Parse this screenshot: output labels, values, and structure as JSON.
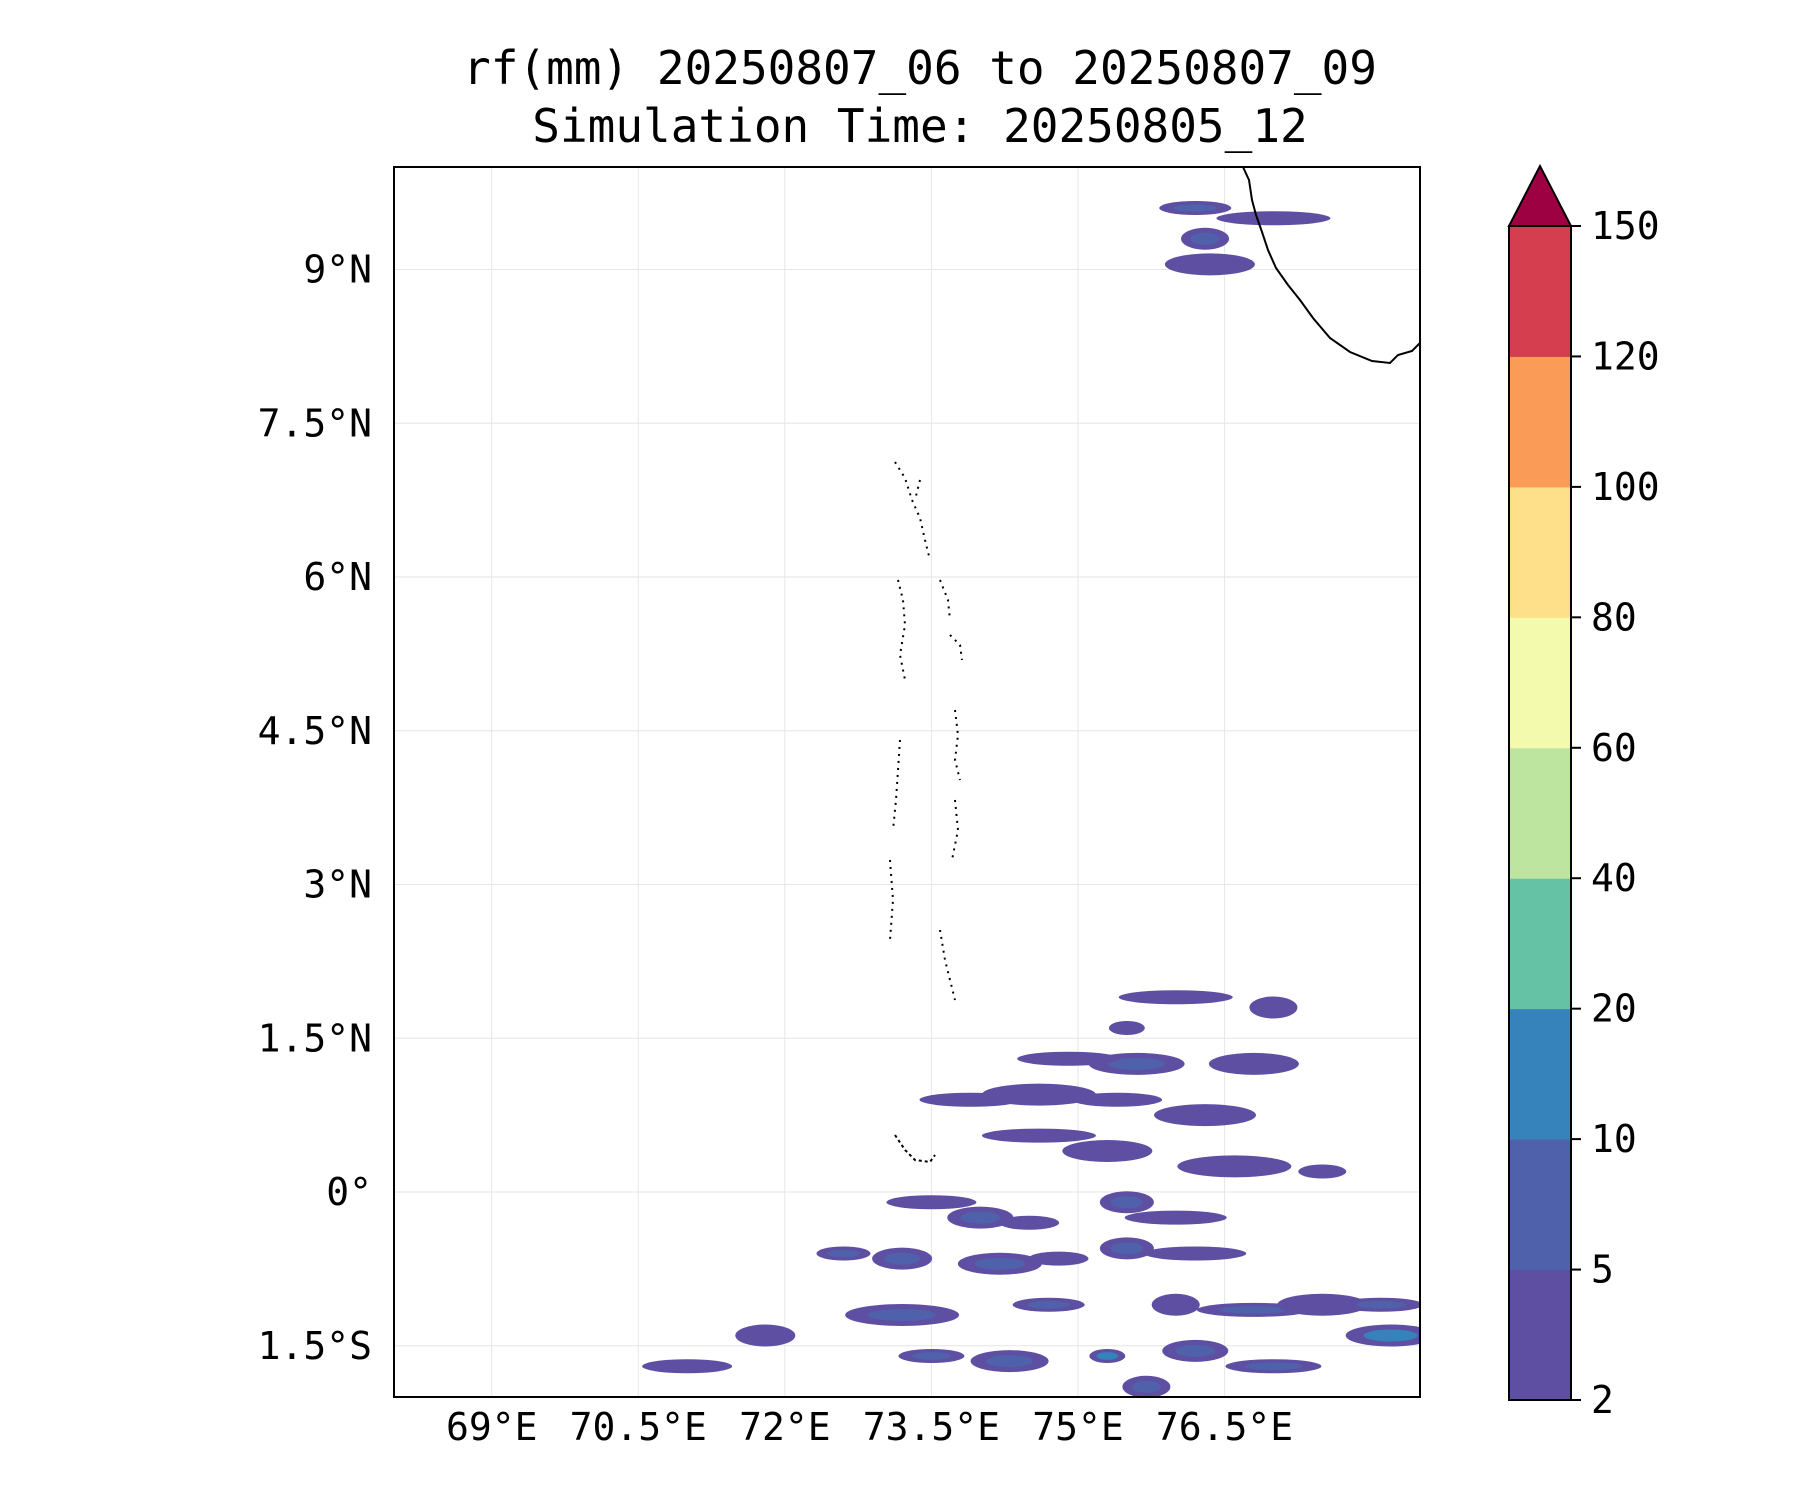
{
  "title_line1": "rf(mm) 20250807_06 to 20250807_09",
  "title_line2": "Simulation Time: 20250805_12",
  "map": {
    "type": "filled contour map",
    "variable": "rf(mm)",
    "extent": {
      "lon": [
        68.0,
        78.5
      ],
      "lat": [
        -2.0,
        10.0
      ]
    },
    "grid": true,
    "coastline_color": "#000000",
    "land_fill": "none"
  },
  "axes": {
    "lat_ticks": [
      {
        "value": 9.0,
        "label": "9°N"
      },
      {
        "value": 7.5,
        "label": "7.5°N"
      },
      {
        "value": 6.0,
        "label": "6°N"
      },
      {
        "value": 4.5,
        "label": "4.5°N"
      },
      {
        "value": 3.0,
        "label": "3°N"
      },
      {
        "value": 1.5,
        "label": "1.5°N"
      },
      {
        "value": 0.0,
        "label": "0°"
      },
      {
        "value": -1.5,
        "label": "1.5°S"
      }
    ],
    "lon_ticks": [
      {
        "value": 69.0,
        "label": "69°E"
      },
      {
        "value": 70.5,
        "label": "70.5°E"
      },
      {
        "value": 72.0,
        "label": "72°E"
      },
      {
        "value": 73.5,
        "label": "73.5°E"
      },
      {
        "value": 75.0,
        "label": "75°E"
      },
      {
        "value": 76.5,
        "label": "76.5°E"
      }
    ]
  },
  "colorbar": {
    "orientation": "vertical",
    "extend": "max",
    "extend_color": "#9e0142",
    "levels": [
      {
        "from": 2,
        "to": 5,
        "color": "#5e4fa2"
      },
      {
        "from": 5,
        "to": 10,
        "color": "#4f61aa"
      },
      {
        "from": 10,
        "to": 20,
        "color": "#3682ba"
      },
      {
        "from": 20,
        "to": 40,
        "color": "#66c2a5"
      },
      {
        "from": 40,
        "to": 60,
        "color": "#bee5a0"
      },
      {
        "from": 60,
        "to": 80,
        "color": "#f3faad"
      },
      {
        "from": 80,
        "to": 100,
        "color": "#fee08b"
      },
      {
        "from": 100,
        "to": 120,
        "color": "#fa9c58"
      },
      {
        "from": 120,
        "to": 150,
        "color": "#d53e4f"
      }
    ],
    "tick_labels": [
      "2",
      "5",
      "10",
      "20",
      "40",
      "60",
      "80",
      "100",
      "120",
      "150"
    ]
  },
  "rain_cells": [
    {
      "lon": 76.2,
      "lat": 9.6,
      "value": 6
    },
    {
      "lon": 76.3,
      "lat": 9.3,
      "value": 8
    },
    {
      "lon": 77.0,
      "lat": 9.5,
      "value": 3
    },
    {
      "lon": 76.35,
      "lat": 9.05,
      "value": 3
    },
    {
      "lon": 73.9,
      "lat": 0.9,
      "value": 3
    },
    {
      "lon": 75.6,
      "lat": 1.25,
      "value": 6
    },
    {
      "lon": 75.5,
      "lat": 1.6,
      "value": 4
    },
    {
      "lon": 77.0,
      "lat": 1.8,
      "value": 4
    },
    {
      "lon": 76.0,
      "lat": 1.9,
      "value": 3
    },
    {
      "lon": 76.8,
      "lat": 1.25,
      "value": 3
    },
    {
      "lon": 74.9,
      "lat": 1.3,
      "value": 3
    },
    {
      "lon": 74.6,
      "lat": 0.95,
      "value": 3
    },
    {
      "lon": 75.4,
      "lat": 0.9,
      "value": 3
    },
    {
      "lon": 76.3,
      "lat": 0.75,
      "value": 3
    },
    {
      "lon": 74.6,
      "lat": 0.55,
      "value": 3
    },
    {
      "lon": 75.3,
      "lat": 0.4,
      "value": 3
    },
    {
      "lon": 77.5,
      "lat": 0.2,
      "value": 4
    },
    {
      "lon": 76.6,
      "lat": 0.25,
      "value": 3
    },
    {
      "lon": 73.5,
      "lat": -0.1,
      "value": 3
    },
    {
      "lon": 74.0,
      "lat": -0.25,
      "value": 5
    },
    {
      "lon": 74.5,
      "lat": -0.3,
      "value": 4
    },
    {
      "lon": 75.5,
      "lat": -0.1,
      "value": 5
    },
    {
      "lon": 76.0,
      "lat": -0.25,
      "value": 3
    },
    {
      "lon": 73.2,
      "lat": -0.65,
      "value": 8
    },
    {
      "lon": 72.6,
      "lat": -0.6,
      "value": 5
    },
    {
      "lon": 74.2,
      "lat": -0.7,
      "value": 6
    },
    {
      "lon": 74.8,
      "lat": -0.65,
      "value": 4
    },
    {
      "lon": 75.5,
      "lat": -0.55,
      "value": 5
    },
    {
      "lon": 76.2,
      "lat": -0.6,
      "value": 3
    },
    {
      "lon": 73.2,
      "lat": -1.2,
      "value": 7
    },
    {
      "lon": 74.7,
      "lat": -1.1,
      "value": 6
    },
    {
      "lon": 76.0,
      "lat": -1.1,
      "value": 4
    },
    {
      "lon": 76.8,
      "lat": -1.15,
      "value": 7
    },
    {
      "lon": 77.5,
      "lat": -1.1,
      "value": 3
    },
    {
      "lon": 73.5,
      "lat": -1.6,
      "value": 9
    },
    {
      "lon": 74.3,
      "lat": -1.65,
      "value": 5
    },
    {
      "lon": 75.3,
      "lat": -1.6,
      "value": 12
    },
    {
      "lon": 76.2,
      "lat": -1.55,
      "value": 9
    },
    {
      "lon": 77.0,
      "lat": -1.7,
      "value": 6
    },
    {
      "lon": 78.2,
      "lat": -1.4,
      "value": 11
    },
    {
      "lon": 78.1,
      "lat": -1.1,
      "value": 6
    },
    {
      "lon": 71.8,
      "lat": -1.4,
      "value": 4
    },
    {
      "lon": 71.0,
      "lat": -1.7,
      "value": 3
    },
    {
      "lon": 75.7,
      "lat": -1.9,
      "value": 8
    }
  ]
}
